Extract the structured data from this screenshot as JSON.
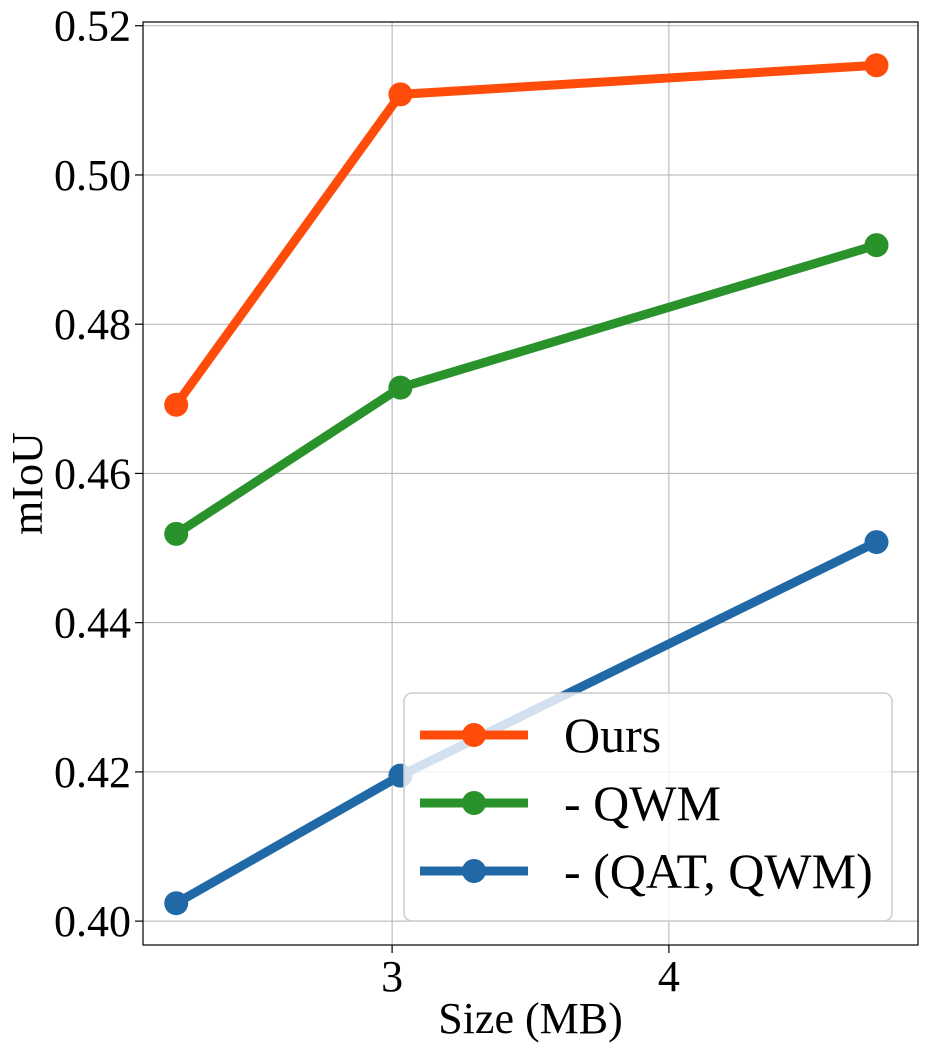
{
  "chart_data": {
    "type": "line",
    "title": "",
    "xlabel": "Size (MB)",
    "ylabel": "mIoU",
    "xlim": [
      2.1,
      4.9
    ],
    "ylim": [
      0.3968,
      0.5205
    ],
    "xticks": [
      3,
      4
    ],
    "xtick_labels": [
      "3",
      "4"
    ],
    "yticks": [
      0.4,
      0.42,
      0.44,
      0.46,
      0.48,
      0.5,
      0.52
    ],
    "ytick_labels": [
      "0.40",
      "0.42",
      "0.44",
      "0.46",
      "0.48",
      "0.50",
      "0.52"
    ],
    "grid": true,
    "legend_position": "lower right",
    "series": [
      {
        "name": "Ours",
        "color": "#ff4c0a",
        "x": [
          2.22,
          3.03,
          4.75
        ],
        "y": [
          0.4692,
          0.5108,
          0.5147
        ]
      },
      {
        "name": "- QWM",
        "color": "#2a922a",
        "x": [
          2.22,
          3.03,
          4.75
        ],
        "y": [
          0.4519,
          0.4715,
          0.4906
        ]
      },
      {
        "name": "- (QAT, QWM)",
        "color": "#2068a6",
        "x": [
          2.22,
          3.03,
          4.75
        ],
        "y": [
          0.4024,
          0.4195,
          0.4508
        ]
      }
    ]
  }
}
